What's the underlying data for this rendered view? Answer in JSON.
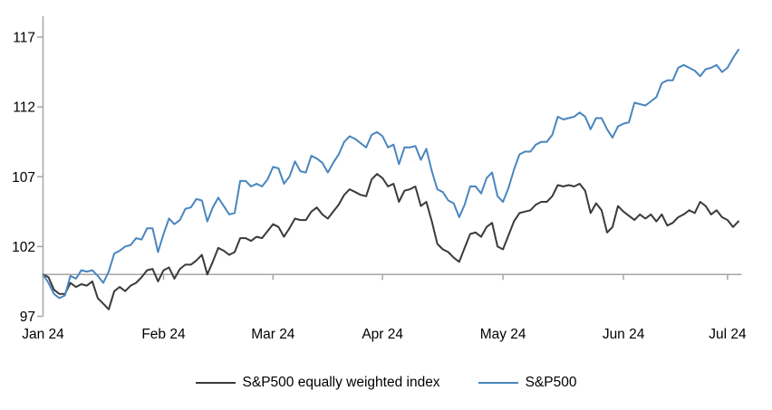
{
  "chart_data": {
    "type": "line",
    "title": "",
    "x": {
      "tick_labels": [
        "Jan 24",
        "Feb 24",
        "Mar 24",
        "Apr 24",
        "May 24",
        "Jun 24",
        "Jul 24"
      ],
      "tick_day_indices": [
        0,
        22,
        42,
        62,
        84,
        106,
        125
      ],
      "total_points": 128
    },
    "y": {
      "ticks": [
        97,
        102,
        107,
        112,
        117
      ],
      "min": 97,
      "max": 117,
      "baseline": 100
    },
    "grid": false,
    "legend_position": "bottom-center",
    "series": [
      {
        "name": "S&P500 equally weighted index",
        "color": "#3a3a3a",
        "values": [
          100.0,
          99.8,
          98.9,
          98.6,
          98.6,
          99.4,
          99.1,
          99.3,
          99.2,
          99.5,
          98.3,
          97.9,
          97.5,
          98.8,
          99.1,
          98.8,
          99.2,
          99.4,
          99.8,
          100.3,
          100.4,
          99.5,
          100.3,
          100.5,
          99.7,
          100.4,
          100.7,
          100.7,
          101.0,
          101.4,
          100.0,
          100.9,
          101.9,
          101.7,
          101.4,
          101.6,
          102.6,
          102.6,
          102.4,
          102.7,
          102.6,
          103.1,
          103.6,
          103.4,
          102.7,
          103.3,
          104.0,
          103.9,
          103.9,
          104.5,
          104.8,
          104.3,
          104.0,
          104.5,
          105.0,
          105.7,
          106.1,
          105.9,
          105.7,
          105.6,
          106.8,
          107.2,
          106.9,
          106.3,
          106.5,
          105.2,
          106.0,
          106.1,
          106.3,
          104.9,
          105.2,
          103.8,
          102.2,
          101.8,
          101.6,
          101.2,
          100.9,
          101.9,
          102.9,
          103.0,
          102.7,
          103.4,
          103.7,
          102.0,
          101.8,
          102.8,
          103.8,
          104.4,
          104.5,
          104.6,
          105.0,
          105.2,
          105.2,
          105.6,
          106.4,
          106.3,
          106.4,
          106.3,
          106.5,
          106.0,
          104.4,
          105.1,
          104.6,
          103.0,
          103.4,
          104.9,
          104.5,
          104.2,
          103.9,
          104.3,
          104.0,
          104.3,
          103.8,
          104.3,
          103.5,
          103.7,
          104.1,
          104.3,
          104.6,
          104.4,
          105.2,
          104.9,
          104.3,
          104.6,
          104.1,
          103.9,
          103.4,
          103.8
        ]
      },
      {
        "name": "S&P500",
        "color": "#4a86be",
        "values": [
          100.0,
          99.4,
          98.6,
          98.3,
          98.5,
          99.9,
          99.7,
          100.3,
          100.2,
          100.3,
          99.9,
          99.4,
          100.2,
          101.5,
          101.7,
          102.0,
          102.1,
          102.6,
          102.5,
          103.3,
          103.3,
          101.6,
          102.9,
          104.0,
          103.6,
          103.9,
          104.7,
          104.8,
          105.4,
          105.3,
          103.8,
          104.8,
          105.5,
          104.9,
          104.3,
          104.4,
          106.7,
          106.7,
          106.3,
          106.5,
          106.3,
          106.8,
          107.7,
          107.6,
          106.5,
          107.0,
          108.1,
          107.4,
          107.3,
          108.5,
          108.3,
          108.0,
          107.3,
          108.0,
          108.6,
          109.5,
          109.9,
          109.7,
          109.4,
          109.1,
          110.0,
          110.2,
          109.9,
          109.1,
          109.3,
          107.9,
          109.1,
          109.1,
          109.2,
          108.2,
          109.0,
          107.4,
          106.1,
          105.9,
          105.3,
          105.1,
          104.1,
          105.0,
          106.3,
          106.3,
          105.8,
          106.9,
          107.3,
          105.6,
          105.2,
          106.2,
          107.5,
          108.6,
          108.8,
          108.8,
          109.3,
          109.5,
          109.5,
          110.0,
          111.3,
          111.1,
          111.2,
          111.3,
          111.6,
          111.3,
          110.4,
          111.2,
          111.2,
          110.4,
          109.8,
          110.6,
          110.8,
          110.9,
          112.3,
          112.2,
          112.1,
          112.4,
          112.7,
          113.7,
          113.9,
          113.9,
          114.8,
          115.0,
          114.8,
          114.6,
          114.2,
          114.7,
          114.8,
          115.0,
          114.5,
          114.8,
          115.5,
          116.1
        ]
      }
    ]
  },
  "colors": {
    "axis": "#a6a6a6",
    "text": "#000000",
    "background": "#ffffff"
  }
}
